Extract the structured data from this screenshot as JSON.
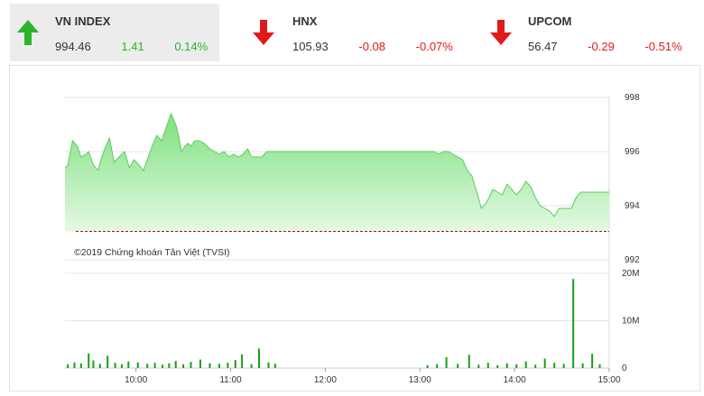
{
  "indices": [
    {
      "name": "VN INDEX",
      "value": "994.46",
      "change": "1.41",
      "percent": "0.14%",
      "direction": "up",
      "color": "#2bb52b"
    },
    {
      "name": "HNX",
      "value": "105.93",
      "change": "-0.08",
      "percent": "-0.07%",
      "direction": "down",
      "color": "#e01a1a"
    },
    {
      "name": "UPCOM",
      "value": "56.47",
      "change": "-0.29",
      "percent": "-0.51%",
      "direction": "down",
      "color": "#e01a1a"
    }
  ],
  "chart_data": [
    {
      "type": "area",
      "x_ticks": [
        "10:00",
        "11:00",
        "12:00",
        "13:00",
        "14:00",
        "15:00"
      ],
      "ylim": [
        992,
        998
      ],
      "y_ticks": [
        "998",
        "996",
        "994",
        "992"
      ],
      "reference": 993.05,
      "annotation": "©2019 Chứng khoán Tân Việt (TVSI)",
      "series": [
        {
          "x": [
            9.25,
            9.28,
            9.33,
            9.38,
            9.42,
            9.47,
            9.5,
            9.55,
            9.6,
            9.63,
            9.67,
            9.72,
            9.77,
            9.82,
            9.88,
            9.93,
            9.98,
            10.03,
            10.08,
            10.12,
            10.17,
            10.22,
            10.27,
            10.32,
            10.37,
            10.42,
            10.45,
            10.48,
            10.52,
            10.55,
            10.58,
            10.62,
            10.67,
            10.72,
            10.78,
            10.83,
            10.88,
            10.93,
            10.98,
            11.03,
            11.08,
            11.13,
            11.18,
            11.22,
            11.27,
            11.33,
            11.38,
            11.42,
            11.47,
            11.52,
            11.6,
            11.7,
            11.8,
            11.9,
            12.0,
            12.1,
            12.2,
            12.3,
            12.4,
            12.5,
            12.6,
            12.7,
            12.8,
            12.9,
            13.0,
            13.05,
            13.1,
            13.15,
            13.2,
            13.25,
            13.3,
            13.35,
            13.4,
            13.45,
            13.5,
            13.55,
            13.6,
            13.65,
            13.7,
            13.73,
            13.77,
            13.82,
            13.87,
            13.92,
            13.97,
            14.02,
            14.07,
            14.12,
            14.17,
            14.22,
            14.27,
            14.32,
            14.37,
            14.42,
            14.47,
            14.5,
            14.55,
            14.6,
            14.65,
            14.7,
            14.75,
            14.78,
            15.0
          ],
          "values": [
            995.4,
            995.5,
            996.4,
            996.2,
            995.8,
            995.9,
            996.0,
            995.5,
            995.3,
            995.7,
            996.1,
            996.5,
            995.6,
            995.8,
            996.0,
            995.4,
            995.7,
            995.5,
            995.3,
            995.7,
            996.2,
            996.6,
            996.4,
            996.9,
            997.4,
            997.0,
            996.6,
            996.0,
            996.2,
            996.3,
            996.2,
            996.4,
            996.4,
            996.3,
            996.1,
            996.0,
            995.9,
            996.0,
            995.8,
            995.9,
            995.8,
            995.9,
            996.1,
            995.8,
            995.8,
            995.8,
            996.0,
            996.0,
            996.0,
            996.0,
            996.0,
            996.0,
            996.0,
            996.0,
            996.0,
            996.0,
            996.0,
            996.0,
            996.0,
            996.0,
            996.0,
            996.0,
            996.0,
            996.0,
            996.0,
            996.0,
            996.0,
            996.0,
            995.9,
            996.0,
            996.0,
            995.9,
            995.8,
            995.7,
            995.3,
            995.1,
            994.5,
            993.9,
            994.1,
            994.3,
            994.6,
            994.5,
            994.4,
            994.8,
            994.6,
            994.4,
            994.6,
            994.9,
            994.7,
            994.3,
            994.0,
            993.9,
            993.8,
            993.6,
            993.9,
            993.9,
            993.9,
            993.9,
            994.3,
            994.5,
            994.5,
            994.5,
            994.5
          ]
        }
      ]
    },
    {
      "type": "bar",
      "x_ticks": [
        "10:00",
        "11:00",
        "12:00",
        "13:00",
        "14:00",
        "15:00"
      ],
      "ylim": [
        0,
        20
      ],
      "y_ticks": [
        "20M",
        "10M",
        "0"
      ],
      "series": [
        {
          "name": "volume",
          "x": [
            9.28,
            9.35,
            9.42,
            9.5,
            9.55,
            9.62,
            9.7,
            9.78,
            9.85,
            9.92,
            10.02,
            10.12,
            10.2,
            10.28,
            10.35,
            10.42,
            10.5,
            10.58,
            10.68,
            10.78,
            10.88,
            10.97,
            11.05,
            11.12,
            11.22,
            11.3,
            11.4,
            11.47,
            13.08,
            13.18,
            13.28,
            13.4,
            13.52,
            13.62,
            13.72,
            13.82,
            13.92,
            14.02,
            14.12,
            14.22,
            14.32,
            14.42,
            14.52,
            14.62,
            14.72,
            14.82,
            14.9
          ],
          "values": [
            0.8,
            1.2,
            1.0,
            3.1,
            1.6,
            0.9,
            2.6,
            1.1,
            0.8,
            1.4,
            1.2,
            0.9,
            1.1,
            0.7,
            1.0,
            1.5,
            0.8,
            1.3,
            1.8,
            1.0,
            0.9,
            1.1,
            1.7,
            2.9,
            0.8,
            4.1,
            1.2,
            0.9,
            0.6,
            0.8,
            2.3,
            0.9,
            2.8,
            0.7,
            1.1,
            0.6,
            1.0,
            0.8,
            1.4,
            0.7,
            2.0,
            1.1,
            0.9,
            18.8,
            1.0,
            3.0,
            0.8
          ]
        }
      ]
    }
  ]
}
